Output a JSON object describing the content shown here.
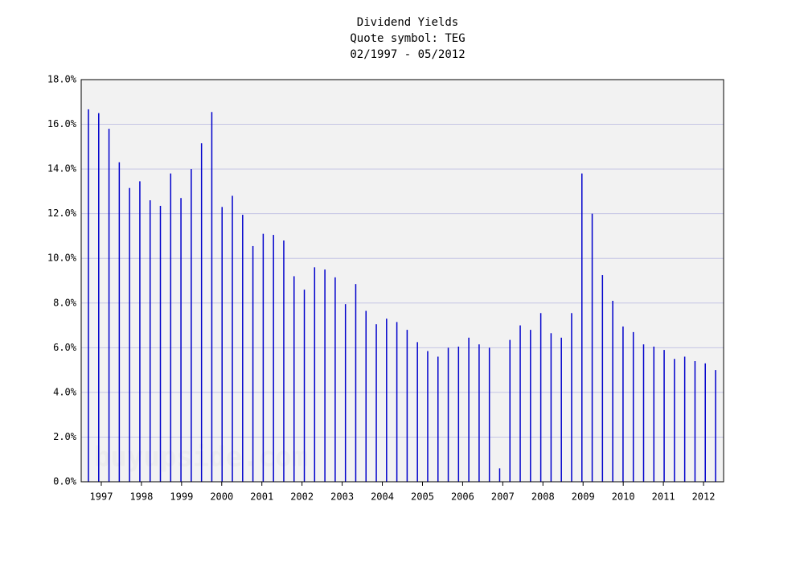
{
  "chart_data": {
    "type": "bar",
    "title": "Dividend Yields",
    "subtitle": "Quote symbol: TEG",
    "date_range": "02/1997 - 05/2012",
    "watermark": "buyupside.com",
    "categories": [
      null,
      null,
      null,
      null,
      null,
      null,
      null,
      null,
      null,
      null,
      null,
      null,
      null,
      null,
      null,
      null,
      null,
      null,
      null,
      null,
      null,
      null,
      null,
      null,
      null,
      null,
      null,
      null,
      null,
      null,
      null,
      null,
      null,
      null,
      null,
      null,
      null,
      null,
      null,
      null,
      null,
      null,
      null,
      null,
      null,
      null,
      null,
      null,
      null,
      null,
      null,
      null,
      null,
      null,
      null,
      null,
      null,
      null,
      null,
      null,
      null,
      null
    ],
    "values": [
      16.67,
      16.5,
      15.8,
      14.3,
      13.15,
      13.45,
      12.6,
      12.35,
      13.8,
      12.7,
      14.0,
      15.15,
      16.55,
      12.3,
      12.8,
      11.95,
      10.55,
      11.1,
      11.05,
      10.8,
      9.2,
      8.6,
      9.6,
      9.5,
      9.15,
      7.95,
      8.85,
      7.65,
      7.05,
      7.3,
      7.15,
      6.8,
      6.25,
      5.85,
      5.6,
      6.0,
      6.05,
      6.45,
      6.15,
      6.0,
      0.6,
      6.35,
      7.0,
      6.8,
      7.55,
      6.65,
      6.45,
      7.55,
      13.8,
      12.0,
      9.25,
      8.1,
      6.95,
      6.7,
      6.15,
      6.05,
      5.9,
      5.5,
      5.6,
      5.4,
      5.3,
      5.0
    ],
    "color": "#0000cc",
    "ylim": [
      0,
      18
    ],
    "yticks": [
      {
        "value": 0,
        "label": "0.0%"
      },
      {
        "value": 2,
        "label": "2.0%"
      },
      {
        "value": 4,
        "label": "4.0%"
      },
      {
        "value": 6,
        "label": "6.0%"
      },
      {
        "value": 8,
        "label": "8.0%"
      },
      {
        "value": 10,
        "label": "10.0%"
      },
      {
        "value": 12,
        "label": "12.0%"
      },
      {
        "value": 14,
        "label": "14.0%"
      },
      {
        "value": 16,
        "label": "16.0%"
      },
      {
        "value": 18,
        "label": "18.0%"
      }
    ],
    "xlim": [
      1996.5,
      2012.5
    ],
    "xticks": [
      1997,
      1998,
      1999,
      2000,
      2001,
      2002,
      2003,
      2004,
      2005,
      2006,
      2007,
      2008,
      2009,
      2010,
      2011,
      2012
    ],
    "grid": true
  }
}
